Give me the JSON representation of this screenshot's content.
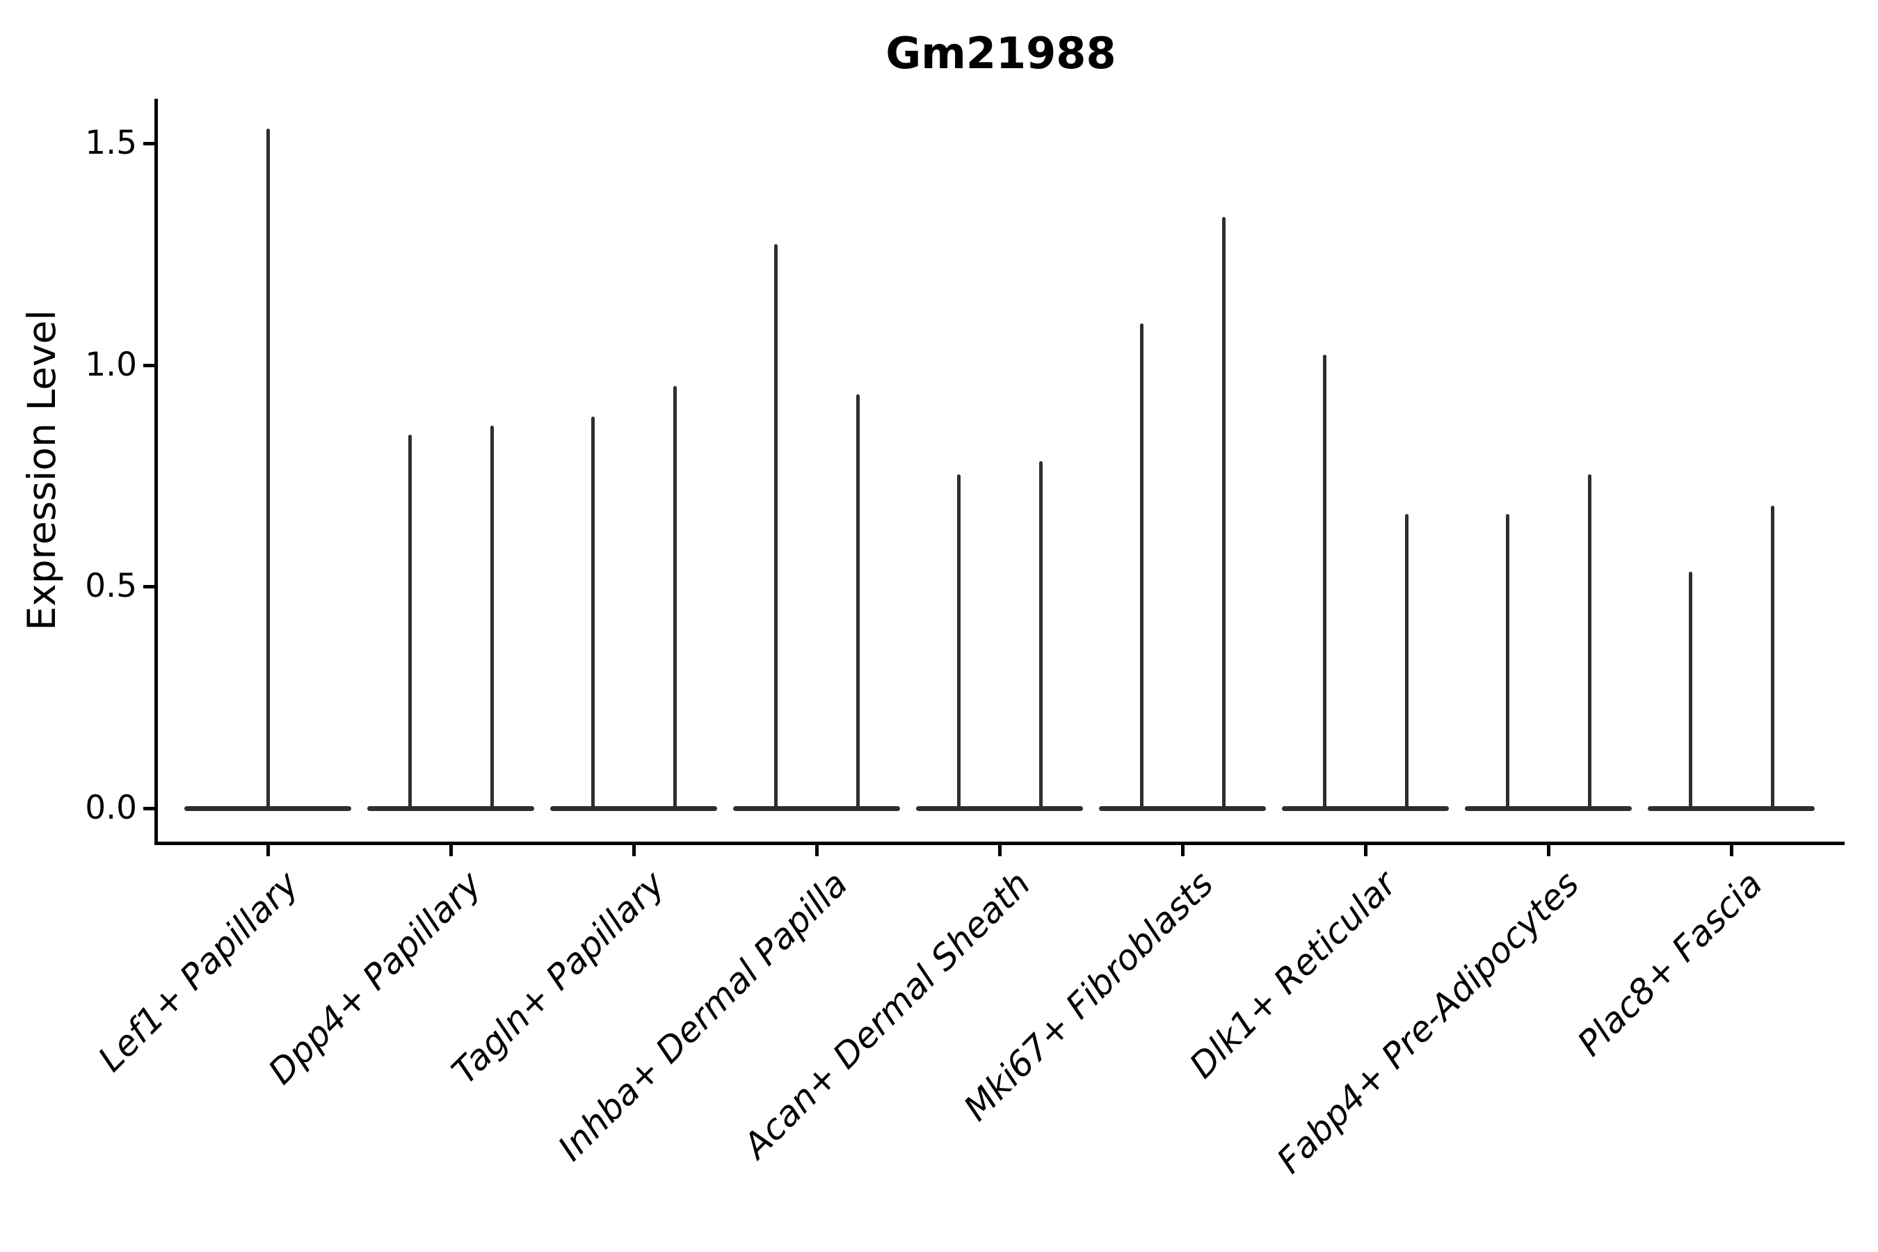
{
  "chart_data": {
    "type": "violin",
    "title": "Gm21988",
    "xlabel": "",
    "ylabel": "Expression Level",
    "legend": "none",
    "grid": false,
    "ylim": [
      -0.08,
      1.6
    ],
    "yticks": {
      "values": [
        0.0,
        0.5,
        1.0,
        1.5
      ],
      "labels": [
        "0.0",
        "0.5",
        "1.0",
        "1.5"
      ]
    },
    "categories": [
      "Lef1+ Papillary",
      "Dpp4+ Papillary",
      "Tagln+ Papillary",
      "Inhba+ Dermal Papilla",
      "Acan+ Dermal Sheath",
      "Mki67+ Fibroblasts",
      "Dlk1+ Reticular",
      "Fabp4+ Pre-Adipocytes",
      "Plac8+ Fascia"
    ],
    "description": "Each violin collapses to a wide flat base at expression 0 with thin vertical tail(s) rising to the maximum expression; all categories except the first show two tails (two violins side by side).",
    "violins": [
      {
        "category": "Lef1+ Papillary",
        "baseline_value": 0.0,
        "tail_max_values": [
          1.53
        ]
      },
      {
        "category": "Dpp4+ Papillary",
        "baseline_value": 0.0,
        "tail_max_values": [
          0.84,
          0.86
        ]
      },
      {
        "category": "Tagln+ Papillary",
        "baseline_value": 0.0,
        "tail_max_values": [
          0.88,
          0.95
        ]
      },
      {
        "category": "Inhba+ Dermal Papilla",
        "baseline_value": 0.0,
        "tail_max_values": [
          1.27,
          0.93
        ]
      },
      {
        "category": "Acan+ Dermal Sheath",
        "baseline_value": 0.0,
        "tail_max_values": [
          0.75,
          0.78
        ]
      },
      {
        "category": "Mki67+ Fibroblasts",
        "baseline_value": 0.0,
        "tail_max_values": [
          1.09,
          1.33
        ]
      },
      {
        "category": "Dlk1+ Reticular",
        "baseline_value": 0.0,
        "tail_max_values": [
          1.02,
          0.66
        ]
      },
      {
        "category": "Fabp4+ Pre-Adipocytes",
        "baseline_value": 0.0,
        "tail_max_values": [
          0.66,
          0.75
        ]
      },
      {
        "category": "Plac8+ Fascia",
        "baseline_value": 0.0,
        "tail_max_values": [
          0.53,
          0.68
        ]
      }
    ],
    "colors": {
      "violin": "#2e2e2e",
      "axis": "#000000",
      "text": "#000000",
      "background": "#ffffff"
    }
  }
}
